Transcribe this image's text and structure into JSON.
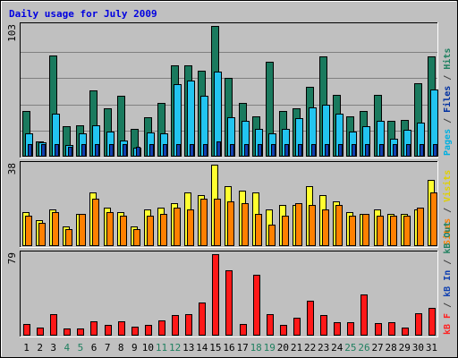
{
  "chart_data": {
    "type": "bar",
    "title": "Daily usage for July 2009",
    "days": [
      "1",
      "2",
      "3",
      "4",
      "5",
      "6",
      "7",
      "8",
      "9",
      "10",
      "11",
      "12",
      "13",
      "14",
      "15",
      "16",
      "17",
      "18",
      "19",
      "20",
      "21",
      "22",
      "23",
      "24",
      "25",
      "26",
      "27",
      "28",
      "29",
      "30",
      "31"
    ],
    "weekend_days": [
      4,
      5,
      11,
      12,
      18,
      19,
      25,
      26
    ],
    "panels": [
      {
        "ymax_label": "103",
        "ylabel": [
          {
            "text": "Pages",
            "color": "#00b0e0"
          },
          {
            "text": " / ",
            "color": "#404040"
          },
          {
            "text": "Files",
            "color": "#0030a0"
          },
          {
            "text": " / ",
            "color": "#404040"
          },
          {
            "text": "Hits",
            "color": "#208060"
          }
        ],
        "series": [
          {
            "name": "Hits",
            "color": "#1a7a5e",
            "values": [
              36,
              12,
              80,
              24,
              25,
              52,
              38,
              48,
              22,
              31,
              42,
              72,
              72,
              68,
              103,
              62,
              42,
              32,
              75,
              36,
              38,
              55,
              79,
              49,
              32,
              36,
              49,
              28,
              29,
              58,
              79
            ]
          },
          {
            "name": "Files",
            "color": "#22c4f0",
            "values": [
              18,
              11,
              34,
              9,
              18,
              25,
              20,
              13,
              7,
              19,
              18,
              57,
              60,
              48,
              67,
              31,
              28,
              22,
              18,
              22,
              30,
              39,
              41,
              34,
              20,
              24,
              28,
              14,
              21,
              27,
              53
            ]
          },
          {
            "name": "Pages",
            "color": "#1040b0",
            "values": [
              10,
              10,
              10,
              8,
              10,
              10,
              10,
              10,
              8,
              10,
              10,
              10,
              10,
              10,
              12,
              10,
              10,
              10,
              10,
              10,
              10,
              10,
              10,
              10,
              10,
              10,
              10,
              10,
              10,
              10,
              10
            ]
          }
        ]
      },
      {
        "ymax_label": "38",
        "ylabel": [
          {
            "text": "Sites",
            "color": "#ff8000"
          },
          {
            "text": " / ",
            "color": "#404040"
          },
          {
            "text": "Visits",
            "color": "#e0d000"
          }
        ],
        "series": [
          {
            "name": "Visits",
            "color": "#ffff30",
            "values": [
              16,
              12,
              17,
              9,
              15,
              25,
              18,
              16,
              9,
              17,
              18,
              20,
              25,
              24,
              38,
              28,
              26,
              25,
              17,
              19,
              19,
              28,
              24,
              21,
              16,
              15,
              17,
              15,
              15,
              17,
              31
            ]
          },
          {
            "name": "Sites",
            "color": "#ff8000",
            "values": [
              14,
              11,
              16,
              8,
              15,
              22,
              16,
              14,
              8,
              14,
              15,
              18,
              17,
              22,
              22,
              21,
              20,
              15,
              10,
              14,
              20,
              19,
              17,
              19,
              14,
              15,
              14,
              14,
              14,
              18,
              25
            ]
          }
        ]
      },
      {
        "ymax_label": "79",
        "ylabel": [
          {
            "text": "kB F",
            "color": "#ff2020"
          },
          {
            "text": " / ",
            "color": "#404040"
          },
          {
            "text": "kB In",
            "color": "#1040b0"
          },
          {
            "text": " / ",
            "color": "#404040"
          },
          {
            "text": "kB Out",
            "color": "#208060"
          }
        ],
        "series": [
          {
            "name": "kB F",
            "color": "#ff1818",
            "values": [
              11,
              8,
              21,
              7,
              7,
              14,
              10,
              14,
              9,
              10,
              15,
              20,
              21,
              32,
              79,
              63,
              11,
              59,
              21,
              10,
              17,
              34,
              20,
              13,
              13,
              40,
              12,
              13,
              8,
              22,
              27
            ]
          }
        ]
      }
    ]
  },
  "colors": {
    "frame_bg": "#c0c0c0",
    "plot_bg": "#c0c0c0",
    "title": "#0000e0",
    "day_label": "#000000",
    "weekend_label": "#208060",
    "gridline": "#808080"
  }
}
